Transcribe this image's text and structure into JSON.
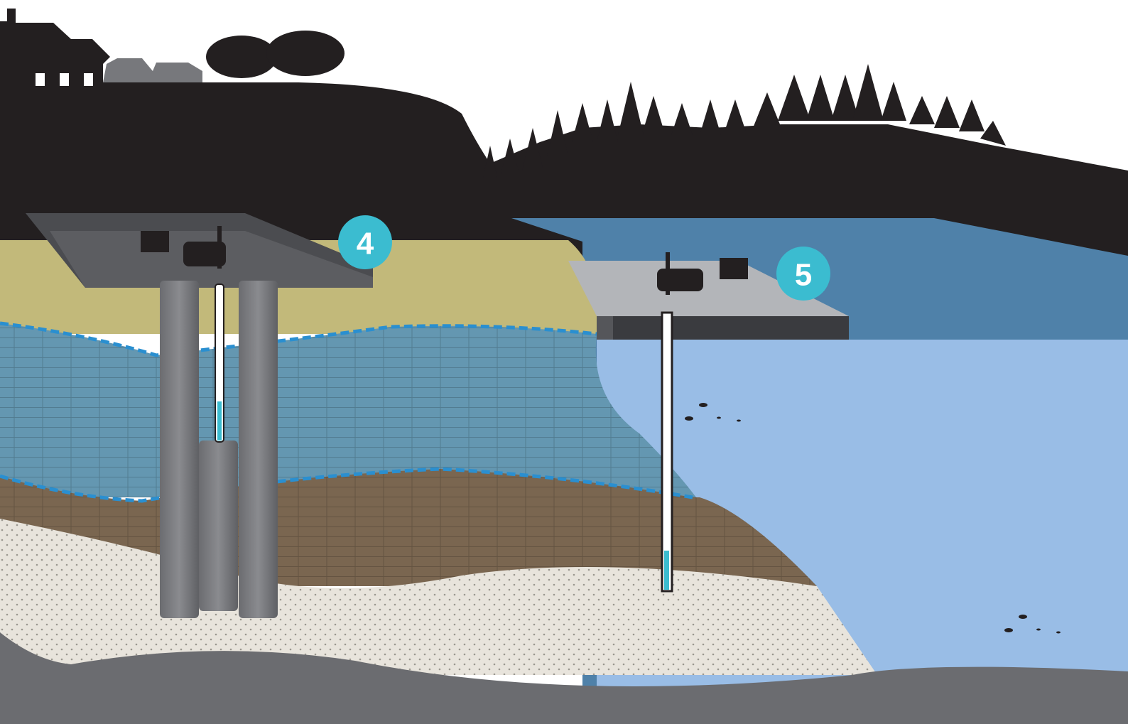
{
  "markers": [
    {
      "label": "4"
    },
    {
      "label": "5"
    }
  ]
}
